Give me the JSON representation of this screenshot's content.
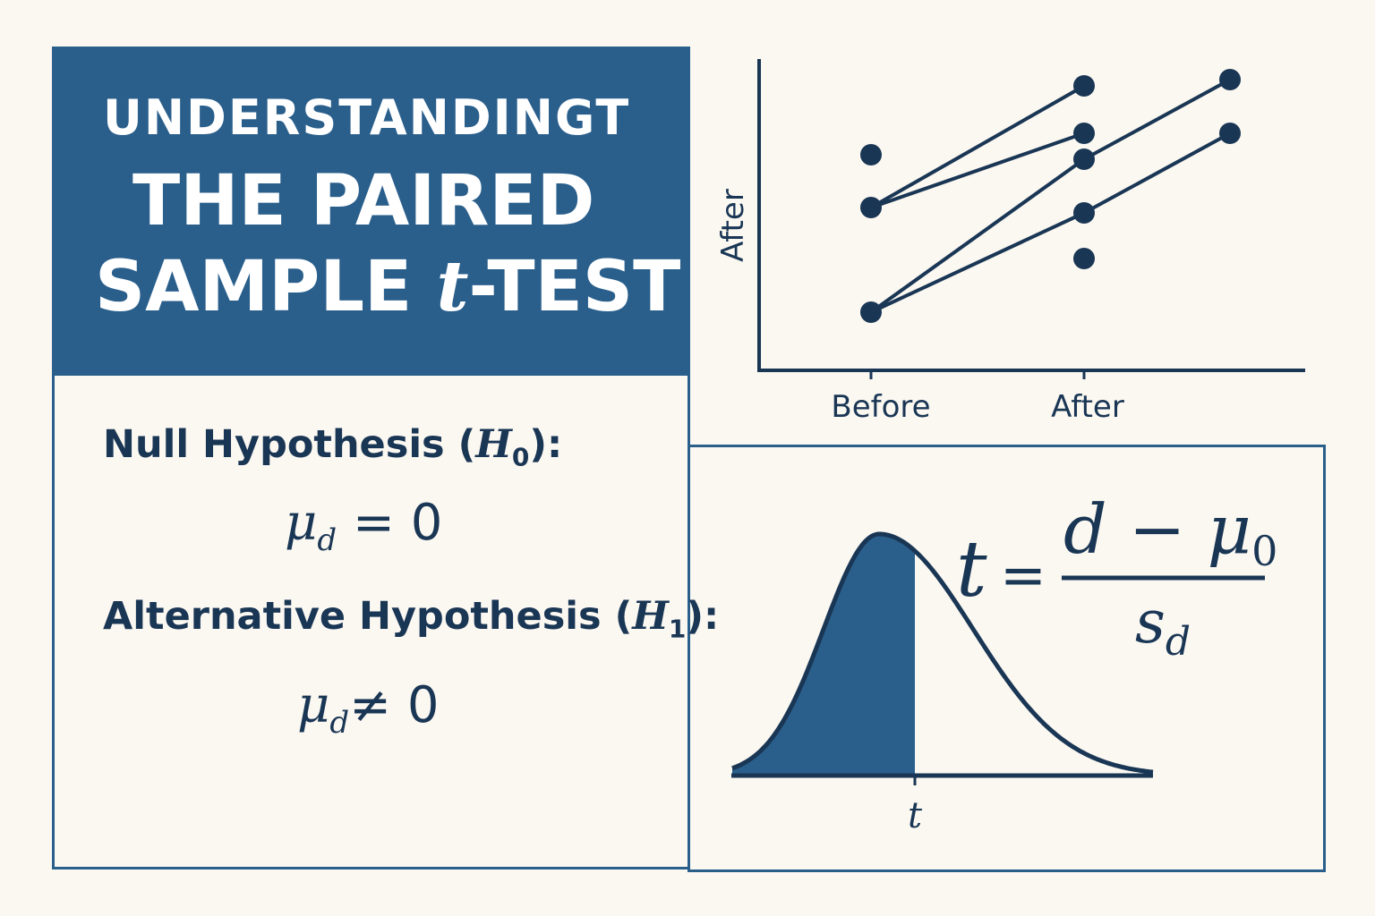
{
  "title": {
    "line1": "UNDERSTANDINGT",
    "line2": "THE PAIRED",
    "line3_prefix": "SAMPLE ",
    "line3_t": "t",
    "line3_suffix": "-TEST"
  },
  "hypotheses": {
    "null_label": "Null Hypothesis (",
    "null_symbol": "H",
    "null_sub": "0",
    "null_close": "):",
    "null_expr_mu": "μ",
    "null_expr_sub": "d",
    "null_expr_rest": " = 0",
    "alt_label": "Alternative Hypothesis (",
    "alt_symbol": "H",
    "alt_sub": "1",
    "alt_close": "):",
    "alt_expr_mu": "μ",
    "alt_expr_sub": "d",
    "alt_expr_rest": "≠ 0"
  },
  "paired_plot": {
    "y_label": "After",
    "x_ticks": [
      "Before",
      "After"
    ]
  },
  "distribution": {
    "t_label": "t",
    "shaded_region": "left of t"
  },
  "formula": {
    "lhs": "t",
    "equals": "=",
    "numerator_d": "d",
    "numerator_minus": " − ",
    "numerator_mu": "μ",
    "numerator_sub": "0",
    "denominator_s": "s",
    "denominator_sub": "d"
  },
  "colors": {
    "background": "#fbf8f1",
    "primary_blue": "#2a5f8c",
    "navy": "#1a3655"
  }
}
